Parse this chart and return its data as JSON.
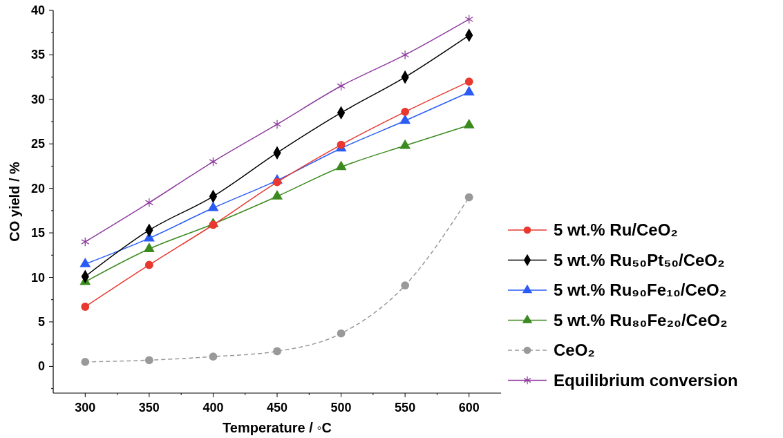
{
  "chart_data": {
    "type": "line",
    "xlabel": "Temperature / ◦C",
    "ylabel": "CO yield / %",
    "x": [
      300,
      350,
      400,
      450,
      500,
      550,
      600
    ],
    "xlim": [
      275,
      625
    ],
    "xticks": [
      300,
      {
        "value": 325,
        "label": null
      },
      350,
      {
        "value": 375,
        "label": null
      },
      400,
      {
        "value": 425,
        "label": null
      },
      450,
      {
        "value": 475,
        "label": null
      },
      500,
      {
        "value": 525,
        "label": null
      },
      550,
      {
        "value": 575,
        "label": null
      },
      600
    ],
    "ylim": [
      -3,
      40
    ],
    "yticks": [
      {
        "value": -2.5,
        "label": null
      },
      0,
      {
        "value": 2.5,
        "label": null
      },
      5,
      {
        "value": 7.5,
        "label": null
      },
      10,
      {
        "value": 12.5,
        "label": null
      },
      15,
      {
        "value": 17.5,
        "label": null
      },
      20,
      {
        "value": 22.5,
        "label": null
      },
      25,
      {
        "value": 27.5,
        "label": null
      },
      30,
      {
        "value": 32.5,
        "label": null
      },
      35,
      {
        "value": 37.5,
        "label": null
      },
      40
    ],
    "grid": false,
    "legend": "right",
    "series": [
      {
        "name": "5 wt.% Ru/CeO₂",
        "color": "#e8382f",
        "marker": "circle",
        "line_style": "solid",
        "values": [
          6.7,
          11.4,
          15.9,
          20.7,
          24.9,
          28.6,
          32.0
        ]
      },
      {
        "name": "5 wt.% Ru₅₀Pt₅₀/CeO₂",
        "color": "#000000",
        "marker": "diamond",
        "line_style": "solid",
        "values": [
          10.1,
          15.3,
          19.1,
          24.0,
          28.5,
          32.5,
          37.2
        ]
      },
      {
        "name": "5 wt.% Ru₉₀Fe₁₀/CeO₂",
        "color": "#2a5cf5",
        "marker": "triangle",
        "line_style": "solid",
        "values": [
          11.5,
          14.4,
          17.8,
          20.9,
          24.5,
          27.6,
          30.8
        ]
      },
      {
        "name": "5 wt.% Ru₈₀Fe₂₀/CeO₂",
        "color": "#3b8a1e",
        "marker": "triangle",
        "line_style": "solid",
        "values": [
          9.5,
          13.2,
          16.0,
          19.1,
          22.4,
          24.8,
          27.1
        ]
      },
      {
        "name": "CeO₂",
        "color": "#999999",
        "marker": "circle",
        "line_style": "dashed",
        "values": [
          0.5,
          0.7,
          1.1,
          1.7,
          3.7,
          9.1,
          19.0
        ]
      },
      {
        "name": "Equilibrium conversion",
        "color": "#8e3c9e",
        "marker": "cross",
        "line_style": "solid",
        "values": [
          14.0,
          18.4,
          23.0,
          27.2,
          31.5,
          35.0,
          39.0
        ]
      }
    ]
  }
}
